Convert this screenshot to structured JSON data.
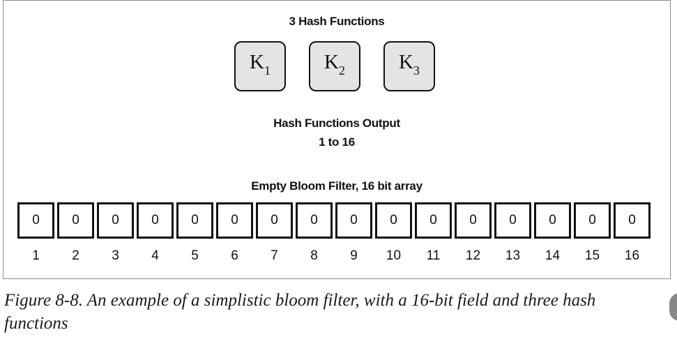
{
  "figure": {
    "hash_title": "3 Hash Functions",
    "hash_keys": [
      {
        "letter": "K",
        "sub": "1"
      },
      {
        "letter": "K",
        "sub": "2"
      },
      {
        "letter": "K",
        "sub": "3"
      }
    ],
    "output_title": "Hash Functions Output",
    "output_range": "1 to 16",
    "filter_title": "Empty Bloom Filter, 16 bit array",
    "bits": [
      "0",
      "0",
      "0",
      "0",
      "0",
      "0",
      "0",
      "0",
      "0",
      "0",
      "0",
      "0",
      "0",
      "0",
      "0",
      "0"
    ],
    "indices": [
      "1",
      "2",
      "3",
      "4",
      "5",
      "6",
      "7",
      "8",
      "9",
      "10",
      "11",
      "12",
      "13",
      "14",
      "15",
      "16"
    ]
  },
  "caption": "Figure 8-8. An example of a simplistic bloom filter, with a 16-bit field and three hash functions",
  "colors": {
    "key_fill": "#e4e4e4",
    "border": "#111111",
    "frame": "#8a8a8a",
    "side_tab": "#888888"
  }
}
